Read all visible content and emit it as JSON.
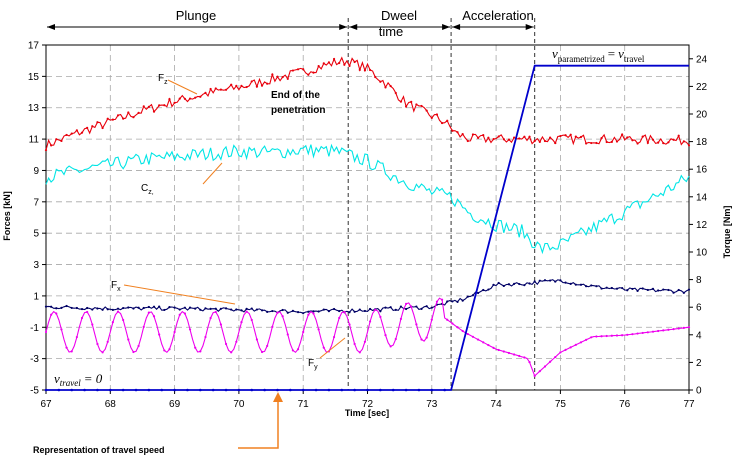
{
  "chart_data": {
    "type": "line",
    "xlabel": "Time [sec]",
    "ylabel_left": "Forces [kN]",
    "ylabel_right": "Torque [Nm]",
    "xlim": [
      67,
      77
    ],
    "ylim_left": [
      -5,
      17
    ],
    "ylim_right": [
      0,
      25
    ],
    "x_ticks": [
      67,
      68,
      69,
      70,
      71,
      72,
      73,
      74,
      75,
      76,
      77
    ],
    "y_ticks_left": [
      -5,
      -3,
      -1,
      1,
      3,
      5,
      7,
      9,
      11,
      13,
      15,
      17
    ],
    "y_ticks_right": [
      0,
      2,
      4,
      6,
      8,
      10,
      12,
      14,
      16,
      18,
      20,
      22,
      24
    ],
    "grid": true,
    "phase_lines_x": [
      71.7,
      73.3,
      74.6
    ],
    "phases": [
      {
        "label": "Plunge",
        "from": 67,
        "to": 71.7
      },
      {
        "label": "Dweel",
        "label2": "time",
        "from": 71.7,
        "to": 73.3
      },
      {
        "label": "Acceleration",
        "from": 73.3,
        "to": 74.6
      }
    ],
    "series": [
      {
        "name": "Fz",
        "axis": "left",
        "color": "#e8000c",
        "points": [
          [
            67,
            10.6
          ],
          [
            67.5,
            11.4
          ],
          [
            68,
            12.1
          ],
          [
            68.5,
            12.8
          ],
          [
            69,
            13.4
          ],
          [
            69.5,
            13.9
          ],
          [
            70,
            14.3
          ],
          [
            70.5,
            14.8
          ],
          [
            71,
            15.3
          ],
          [
            71.5,
            15.9
          ],
          [
            71.7,
            16.0
          ],
          [
            72,
            15.5
          ],
          [
            72.3,
            14.5
          ],
          [
            72.6,
            13.3
          ],
          [
            73,
            12.5
          ],
          [
            73.2,
            12.1
          ],
          [
            73.4,
            11.3
          ],
          [
            73.6,
            11.0
          ],
          [
            74,
            11.0
          ],
          [
            75,
            11.0
          ],
          [
            76,
            11.0
          ],
          [
            77,
            10.9
          ]
        ],
        "wiggle": 0.3
      },
      {
        "name": "Cz",
        "axis": "right",
        "color": "#00e5e5",
        "points": [
          [
            67,
            15.4
          ],
          [
            67.5,
            15.9
          ],
          [
            68,
            16.3
          ],
          [
            68.5,
            16.7
          ],
          [
            69,
            16.9
          ],
          [
            69.5,
            17.1
          ],
          [
            70,
            17.3
          ],
          [
            70.5,
            17.2
          ],
          [
            71,
            17.4
          ],
          [
            71.5,
            17.3
          ],
          [
            72,
            16.6
          ],
          [
            72.5,
            15.3
          ],
          [
            73,
            14.3
          ],
          [
            73.3,
            14.0
          ],
          [
            73.6,
            12.8
          ],
          [
            74,
            12.0
          ],
          [
            74.4,
            11.5
          ],
          [
            74.7,
            10.2
          ],
          [
            75,
            10.5
          ],
          [
            75.5,
            11.7
          ],
          [
            76,
            12.9
          ],
          [
            76.5,
            14.1
          ],
          [
            77,
            15.4
          ]
        ],
        "wiggle": 0.5
      },
      {
        "name": "Fx",
        "axis": "left",
        "color": "#000066",
        "points": [
          [
            67,
            0.3
          ],
          [
            68,
            0.2
          ],
          [
            69,
            0.2
          ],
          [
            70,
            0.1
          ],
          [
            71,
            0.0
          ],
          [
            72,
            0.1
          ],
          [
            73,
            0.3
          ],
          [
            73.5,
            0.8
          ],
          [
            74,
            1.7
          ],
          [
            74.5,
            1.8
          ],
          [
            75,
            2.0
          ],
          [
            75.5,
            1.6
          ],
          [
            76,
            1.4
          ],
          [
            77,
            1.3
          ]
        ],
        "wiggle": 0.12
      },
      {
        "name": "Fy",
        "axis": "left",
        "color": "#ee00ee",
        "points": [
          [
            67,
            -1.3
          ],
          [
            72,
            -1.3
          ],
          [
            72.5,
            -0.8
          ],
          [
            73.2,
            -0.4
          ],
          [
            73.5,
            -1.3
          ],
          [
            74,
            -2.4
          ],
          [
            74.5,
            -3.0
          ],
          [
            74.6,
            -4.1
          ],
          [
            75,
            -2.6
          ],
          [
            75.5,
            -1.6
          ],
          [
            76,
            -1.5
          ],
          [
            77,
            -1.0
          ]
        ],
        "oscillation": {
          "from": 67,
          "to": 73.2,
          "period": 0.5,
          "amplitude": 1.3
        }
      },
      {
        "name": "v",
        "axis": "right",
        "color": "#0000cc",
        "points": [
          [
            67,
            0
          ],
          [
            73.3,
            0
          ],
          [
            74.6,
            23.5
          ],
          [
            77,
            23.5
          ]
        ]
      }
    ],
    "annotations": {
      "fz": "F",
      "fz_sub": "z",
      "cz": "C",
      "cz_sub": "z,",
      "fx": "F",
      "fx_sub": "x",
      "fy": "F",
      "fy_sub": "y",
      "penetration_1": "End of the",
      "penetration_2": "penetration",
      "vtravel_zero_v": "v",
      "vtravel_zero_sub": "travel",
      "vtravel_zero_eq": "= 0",
      "param_v1": "v",
      "param_sub1": "parametrized",
      "param_eq": "=",
      "param_v2": "v",
      "param_sub2": "travel",
      "travel_speed": "Representation of travel speed"
    }
  }
}
